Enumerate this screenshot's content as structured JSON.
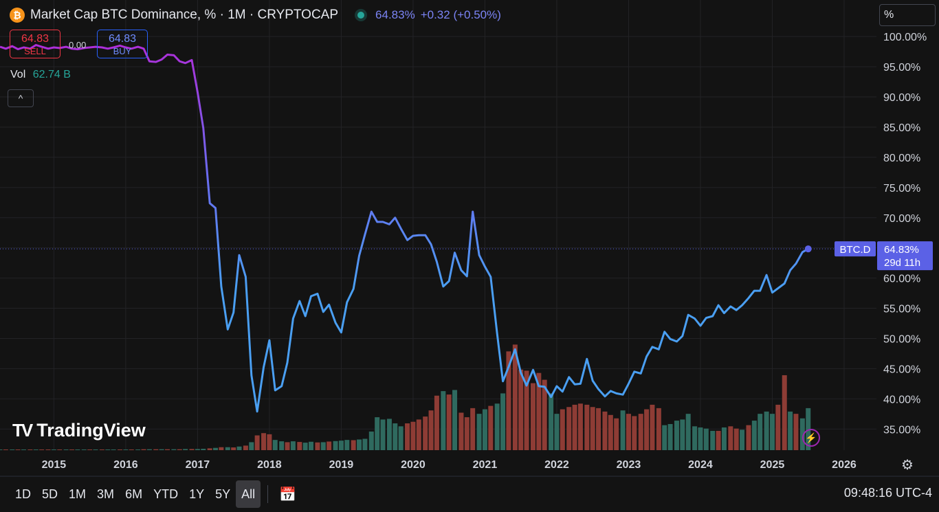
{
  "header": {
    "symbol_title": "Market Cap BTC Dominance, % · 1M · CRYPTOCAP",
    "last": "64.83%",
    "change": "+0.32 (+0.50%)",
    "logo_glyph": "₿"
  },
  "scale_mode": "%",
  "trade": {
    "sell_price": "64.83",
    "sell_label": "SELL",
    "buy_price": "64.83",
    "buy_label": "BUY",
    "spread": "0.00"
  },
  "volume": {
    "label": "Vol",
    "value": "62.74 B"
  },
  "collapse_icon": "^",
  "brand": {
    "mark": "TV",
    "name": "TradingView"
  },
  "price_label": {
    "symbol": "BTC.D",
    "value": "64.83%",
    "countdown": "29d 11h"
  },
  "time_ranges": [
    "1D",
    "5D",
    "1M",
    "3M",
    "6M",
    "YTD",
    "1Y",
    "5Y",
    "All"
  ],
  "active_range": "All",
  "clock": "09:48:16 UTC-4",
  "colors": {
    "background": "#131313",
    "line_start": "#b02cd8",
    "line_end": "#4a9ff2",
    "volume_up": "#2f6a5f",
    "volume_down": "#8e3c35",
    "price_tag": "#5b61e6"
  },
  "chart_data": {
    "type": "line",
    "title": "Market Cap BTC Dominance, % · 1M · CRYPTOCAP",
    "ylim": [
      31.5,
      101.5
    ],
    "y_ticks": [
      "100.00%",
      "95.00%",
      "90.00%",
      "85.00%",
      "80.00%",
      "75.00%",
      "70.00%",
      "65.00%",
      "60.00%",
      "55.00%",
      "50.00%",
      "45.00%",
      "40.00%",
      "35.00%"
    ],
    "y_tick_values": [
      100,
      95,
      90,
      85,
      80,
      75,
      70,
      65,
      60,
      55,
      50,
      45,
      40,
      35
    ],
    "x_ticks": [
      "2015",
      "2016",
      "2017",
      "2018",
      "2019",
      "2020",
      "2021",
      "2022",
      "2023",
      "2024",
      "2025",
      "2026"
    ],
    "xlim": [
      2014.25,
      2026.45
    ],
    "grid": true,
    "series": [
      {
        "name": "BTC.D",
        "points": [
          [
            2014.25,
            98.3
          ],
          [
            2014.33,
            98.0
          ],
          [
            2014.42,
            98.4
          ],
          [
            2014.5,
            97.9
          ],
          [
            2014.58,
            98.2
          ],
          [
            2014.67,
            98.0
          ],
          [
            2014.75,
            98.6
          ],
          [
            2014.83,
            98.3
          ],
          [
            2014.92,
            98.0
          ],
          [
            2015.0,
            98.2
          ],
          [
            2015.08,
            98.1
          ],
          [
            2015.17,
            98.3
          ],
          [
            2015.25,
            98.0
          ],
          [
            2015.33,
            97.9
          ],
          [
            2015.42,
            98.1
          ],
          [
            2015.5,
            98.2
          ],
          [
            2015.58,
            98.3
          ],
          [
            2015.67,
            98.2
          ],
          [
            2015.75,
            98.0
          ],
          [
            2015.83,
            98.2
          ],
          [
            2015.92,
            98.5
          ],
          [
            2016.0,
            98.2
          ],
          [
            2016.08,
            98.0
          ],
          [
            2016.17,
            98.3
          ],
          [
            2016.25,
            98.0
          ],
          [
            2016.33,
            95.9
          ],
          [
            2016.42,
            95.8
          ],
          [
            2016.5,
            96.2
          ],
          [
            2016.58,
            97.0
          ],
          [
            2016.67,
            96.9
          ],
          [
            2016.75,
            95.9
          ],
          [
            2016.83,
            95.6
          ],
          [
            2016.92,
            96.1
          ],
          [
            2017.0,
            90.8
          ],
          [
            2017.08,
            84.8
          ],
          [
            2017.17,
            72.4
          ],
          [
            2017.25,
            71.6
          ],
          [
            2017.33,
            58.6
          ],
          [
            2017.42,
            51.5
          ],
          [
            2017.5,
            54.3
          ],
          [
            2017.58,
            63.8
          ],
          [
            2017.67,
            60.2
          ],
          [
            2017.75,
            43.9
          ],
          [
            2017.83,
            37.9
          ],
          [
            2017.92,
            45.2
          ],
          [
            2018.0,
            49.7
          ],
          [
            2018.08,
            41.4
          ],
          [
            2018.17,
            42.1
          ],
          [
            2018.25,
            46.0
          ],
          [
            2018.33,
            53.3
          ],
          [
            2018.42,
            56.2
          ],
          [
            2018.5,
            53.7
          ],
          [
            2018.58,
            57.0
          ],
          [
            2018.67,
            57.4
          ],
          [
            2018.75,
            54.4
          ],
          [
            2018.83,
            55.6
          ],
          [
            2018.92,
            52.6
          ],
          [
            2019.0,
            51.0
          ],
          [
            2019.08,
            56.0
          ],
          [
            2019.17,
            58.2
          ],
          [
            2019.25,
            63.7
          ],
          [
            2019.33,
            67.2
          ],
          [
            2019.42,
            71.0
          ],
          [
            2019.5,
            69.3
          ],
          [
            2019.58,
            69.3
          ],
          [
            2019.67,
            68.9
          ],
          [
            2019.75,
            70.0
          ],
          [
            2019.83,
            68.2
          ],
          [
            2019.92,
            66.3
          ],
          [
            2020.0,
            67.0
          ],
          [
            2020.08,
            67.1
          ],
          [
            2020.17,
            67.1
          ],
          [
            2020.25,
            65.6
          ],
          [
            2020.33,
            62.7
          ],
          [
            2020.42,
            58.6
          ],
          [
            2020.5,
            59.5
          ],
          [
            2020.58,
            64.2
          ],
          [
            2020.67,
            61.3
          ],
          [
            2020.75,
            60.3
          ],
          [
            2020.83,
            71.0
          ],
          [
            2020.92,
            63.8
          ],
          [
            2021.0,
            61.9
          ],
          [
            2021.08,
            60.2
          ],
          [
            2021.17,
            50.8
          ],
          [
            2021.25,
            42.9
          ],
          [
            2021.33,
            45.3
          ],
          [
            2021.42,
            48.2
          ],
          [
            2021.5,
            44.3
          ],
          [
            2021.58,
            42.2
          ],
          [
            2021.67,
            44.8
          ],
          [
            2021.75,
            42.1
          ],
          [
            2021.83,
            42.0
          ],
          [
            2021.92,
            40.3
          ],
          [
            2022.0,
            42.1
          ],
          [
            2022.08,
            41.2
          ],
          [
            2022.17,
            43.6
          ],
          [
            2022.25,
            42.4
          ],
          [
            2022.33,
            42.5
          ],
          [
            2022.42,
            46.6
          ],
          [
            2022.5,
            43.0
          ],
          [
            2022.58,
            41.6
          ],
          [
            2022.67,
            40.4
          ],
          [
            2022.75,
            41.3
          ],
          [
            2022.83,
            40.9
          ],
          [
            2022.92,
            40.7
          ],
          [
            2023.0,
            42.5
          ],
          [
            2023.08,
            44.5
          ],
          [
            2023.17,
            44.2
          ],
          [
            2023.25,
            47.0
          ],
          [
            2023.33,
            48.6
          ],
          [
            2023.42,
            48.2
          ],
          [
            2023.5,
            51.1
          ],
          [
            2023.58,
            49.9
          ],
          [
            2023.67,
            49.5
          ],
          [
            2023.75,
            50.4
          ],
          [
            2023.83,
            53.9
          ],
          [
            2023.92,
            53.3
          ],
          [
            2024.0,
            52.1
          ],
          [
            2024.08,
            53.4
          ],
          [
            2024.17,
            53.7
          ],
          [
            2024.25,
            55.5
          ],
          [
            2024.33,
            54.2
          ],
          [
            2024.42,
            55.3
          ],
          [
            2024.5,
            54.7
          ],
          [
            2024.58,
            55.5
          ],
          [
            2024.67,
            56.7
          ],
          [
            2024.75,
            57.9
          ],
          [
            2024.83,
            57.9
          ],
          [
            2024.92,
            60.5
          ],
          [
            2025.0,
            57.6
          ],
          [
            2025.08,
            58.3
          ],
          [
            2025.17,
            59.1
          ],
          [
            2025.25,
            61.3
          ],
          [
            2025.33,
            62.4
          ],
          [
            2025.42,
            64.3
          ],
          [
            2025.5,
            64.83
          ]
        ]
      }
    ],
    "volume": {
      "label": "Vol",
      "ylim": [
        0,
        56
      ],
      "bars": [
        [
          2014.25,
          0.3,
          1
        ],
        [
          2014.33,
          0.3,
          0
        ],
        [
          2014.42,
          0.3,
          1
        ],
        [
          2014.5,
          0.3,
          0
        ],
        [
          2014.58,
          0.3,
          1
        ],
        [
          2014.67,
          0.3,
          0
        ],
        [
          2014.75,
          0.3,
          1
        ],
        [
          2014.83,
          0.3,
          0
        ],
        [
          2014.92,
          0.3,
          0
        ],
        [
          2015.0,
          0.3,
          1
        ],
        [
          2015.08,
          0.3,
          0
        ],
        [
          2015.17,
          0.3,
          1
        ],
        [
          2015.25,
          0.3,
          0
        ],
        [
          2015.33,
          0.3,
          1
        ],
        [
          2015.42,
          0.3,
          1
        ],
        [
          2015.5,
          0.3,
          0
        ],
        [
          2015.58,
          0.3,
          1
        ],
        [
          2015.67,
          0.3,
          0
        ],
        [
          2015.75,
          0.3,
          1
        ],
        [
          2015.83,
          0.3,
          1
        ],
        [
          2015.92,
          0.3,
          0
        ],
        [
          2016.0,
          0.3,
          1
        ],
        [
          2016.08,
          0.3,
          0
        ],
        [
          2016.17,
          0.3,
          1
        ],
        [
          2016.25,
          0.4,
          0
        ],
        [
          2016.33,
          0.4,
          1
        ],
        [
          2016.42,
          0.4,
          0
        ],
        [
          2016.5,
          0.4,
          1
        ],
        [
          2016.58,
          0.4,
          0
        ],
        [
          2016.67,
          0.4,
          1
        ],
        [
          2016.75,
          0.4,
          0
        ],
        [
          2016.83,
          0.5,
          1
        ],
        [
          2016.92,
          0.5,
          0
        ],
        [
          2017.0,
          0.5,
          1
        ],
        [
          2017.08,
          0.6,
          1
        ],
        [
          2017.17,
          0.8,
          0
        ],
        [
          2017.25,
          1.0,
          1
        ],
        [
          2017.33,
          1.3,
          0
        ],
        [
          2017.42,
          1.3,
          1
        ],
        [
          2017.5,
          1.2,
          0
        ],
        [
          2017.58,
          1.6,
          1
        ],
        [
          2017.67,
          2.0,
          0
        ],
        [
          2017.75,
          3.5,
          1
        ],
        [
          2017.83,
          6.5,
          0
        ],
        [
          2017.92,
          7.5,
          0
        ],
        [
          2018.0,
          7.0,
          0
        ],
        [
          2018.08,
          4.5,
          1
        ],
        [
          2018.17,
          3.9,
          1
        ],
        [
          2018.25,
          3.5,
          0
        ],
        [
          2018.33,
          3.9,
          1
        ],
        [
          2018.42,
          3.6,
          0
        ],
        [
          2018.5,
          3.3,
          1
        ],
        [
          2018.58,
          3.7,
          1
        ],
        [
          2018.67,
          3.4,
          0
        ],
        [
          2018.75,
          3.5,
          1
        ],
        [
          2018.83,
          3.8,
          0
        ],
        [
          2018.92,
          4.0,
          1
        ],
        [
          2019.0,
          4.2,
          1
        ],
        [
          2019.08,
          4.5,
          1
        ],
        [
          2019.17,
          4.4,
          0
        ],
        [
          2019.25,
          4.7,
          1
        ],
        [
          2019.33,
          5.0,
          1
        ],
        [
          2019.42,
          8.2,
          1
        ],
        [
          2019.5,
          14.5,
          1
        ],
        [
          2019.58,
          13.5,
          1
        ],
        [
          2019.67,
          13.8,
          1
        ],
        [
          2019.75,
          11.8,
          1
        ],
        [
          2019.83,
          10.5,
          1
        ],
        [
          2019.92,
          11.8,
          0
        ],
        [
          2020.0,
          12.5,
          0
        ],
        [
          2020.08,
          13.5,
          0
        ],
        [
          2020.17,
          14.8,
          0
        ],
        [
          2020.25,
          17.5,
          0
        ],
        [
          2020.33,
          24.0,
          0
        ],
        [
          2020.42,
          26.0,
          1
        ],
        [
          2020.5,
          24.5,
          0
        ],
        [
          2020.58,
          26.5,
          1
        ],
        [
          2020.67,
          16.5,
          0
        ],
        [
          2020.75,
          14.5,
          0
        ],
        [
          2020.83,
          18.5,
          0
        ],
        [
          2020.92,
          16.0,
          1
        ],
        [
          2021.0,
          18.0,
          1
        ],
        [
          2021.08,
          19.5,
          0
        ],
        [
          2021.17,
          20.5,
          1
        ],
        [
          2021.25,
          25.0,
          1
        ],
        [
          2021.33,
          43.5,
          0
        ],
        [
          2021.42,
          46.5,
          0
        ],
        [
          2021.5,
          35.5,
          0
        ],
        [
          2021.58,
          35.0,
          0
        ],
        [
          2021.67,
          29.5,
          0
        ],
        [
          2021.75,
          34.0,
          0
        ],
        [
          2021.83,
          31.0,
          0
        ],
        [
          2021.92,
          25.0,
          1
        ],
        [
          2022.0,
          16.0,
          1
        ],
        [
          2022.08,
          18.0,
          0
        ],
        [
          2022.17,
          19.0,
          0
        ],
        [
          2022.25,
          20.0,
          0
        ],
        [
          2022.33,
          20.5,
          0
        ],
        [
          2022.42,
          20.0,
          0
        ],
        [
          2022.5,
          19.0,
          0
        ],
        [
          2022.58,
          18.5,
          0
        ],
        [
          2022.67,
          17.0,
          0
        ],
        [
          2022.75,
          15.5,
          0
        ],
        [
          2022.83,
          14.0,
          0
        ],
        [
          2022.92,
          17.5,
          1
        ],
        [
          2023.0,
          16.0,
          0
        ],
        [
          2023.08,
          15.0,
          0
        ],
        [
          2023.17,
          16.0,
          0
        ],
        [
          2023.25,
          18.0,
          0
        ],
        [
          2023.33,
          20.0,
          0
        ],
        [
          2023.42,
          18.5,
          0
        ],
        [
          2023.5,
          11.0,
          1
        ],
        [
          2023.58,
          11.5,
          1
        ],
        [
          2023.67,
          13.0,
          1
        ],
        [
          2023.75,
          13.5,
          1
        ],
        [
          2023.83,
          16.0,
          1
        ],
        [
          2023.92,
          10.5,
          1
        ],
        [
          2024.0,
          10.0,
          1
        ],
        [
          2024.08,
          9.5,
          1
        ],
        [
          2024.17,
          8.5,
          1
        ],
        [
          2024.25,
          8.5,
          0
        ],
        [
          2024.33,
          10.0,
          1
        ],
        [
          2024.42,
          10.5,
          0
        ],
        [
          2024.5,
          9.5,
          0
        ],
        [
          2024.58,
          9.0,
          1
        ],
        [
          2024.67,
          11.0,
          0
        ],
        [
          2024.75,
          13.0,
          1
        ],
        [
          2024.83,
          16.0,
          1
        ],
        [
          2024.92,
          17.0,
          1
        ],
        [
          2025.0,
          16.0,
          1
        ],
        [
          2025.08,
          20.0,
          0
        ],
        [
          2025.17,
          33.0,
          0
        ],
        [
          2025.25,
          17.0,
          1
        ],
        [
          2025.33,
          16.0,
          0
        ],
        [
          2025.42,
          14.0,
          1
        ],
        [
          2025.5,
          18.5,
          1
        ]
      ]
    }
  }
}
